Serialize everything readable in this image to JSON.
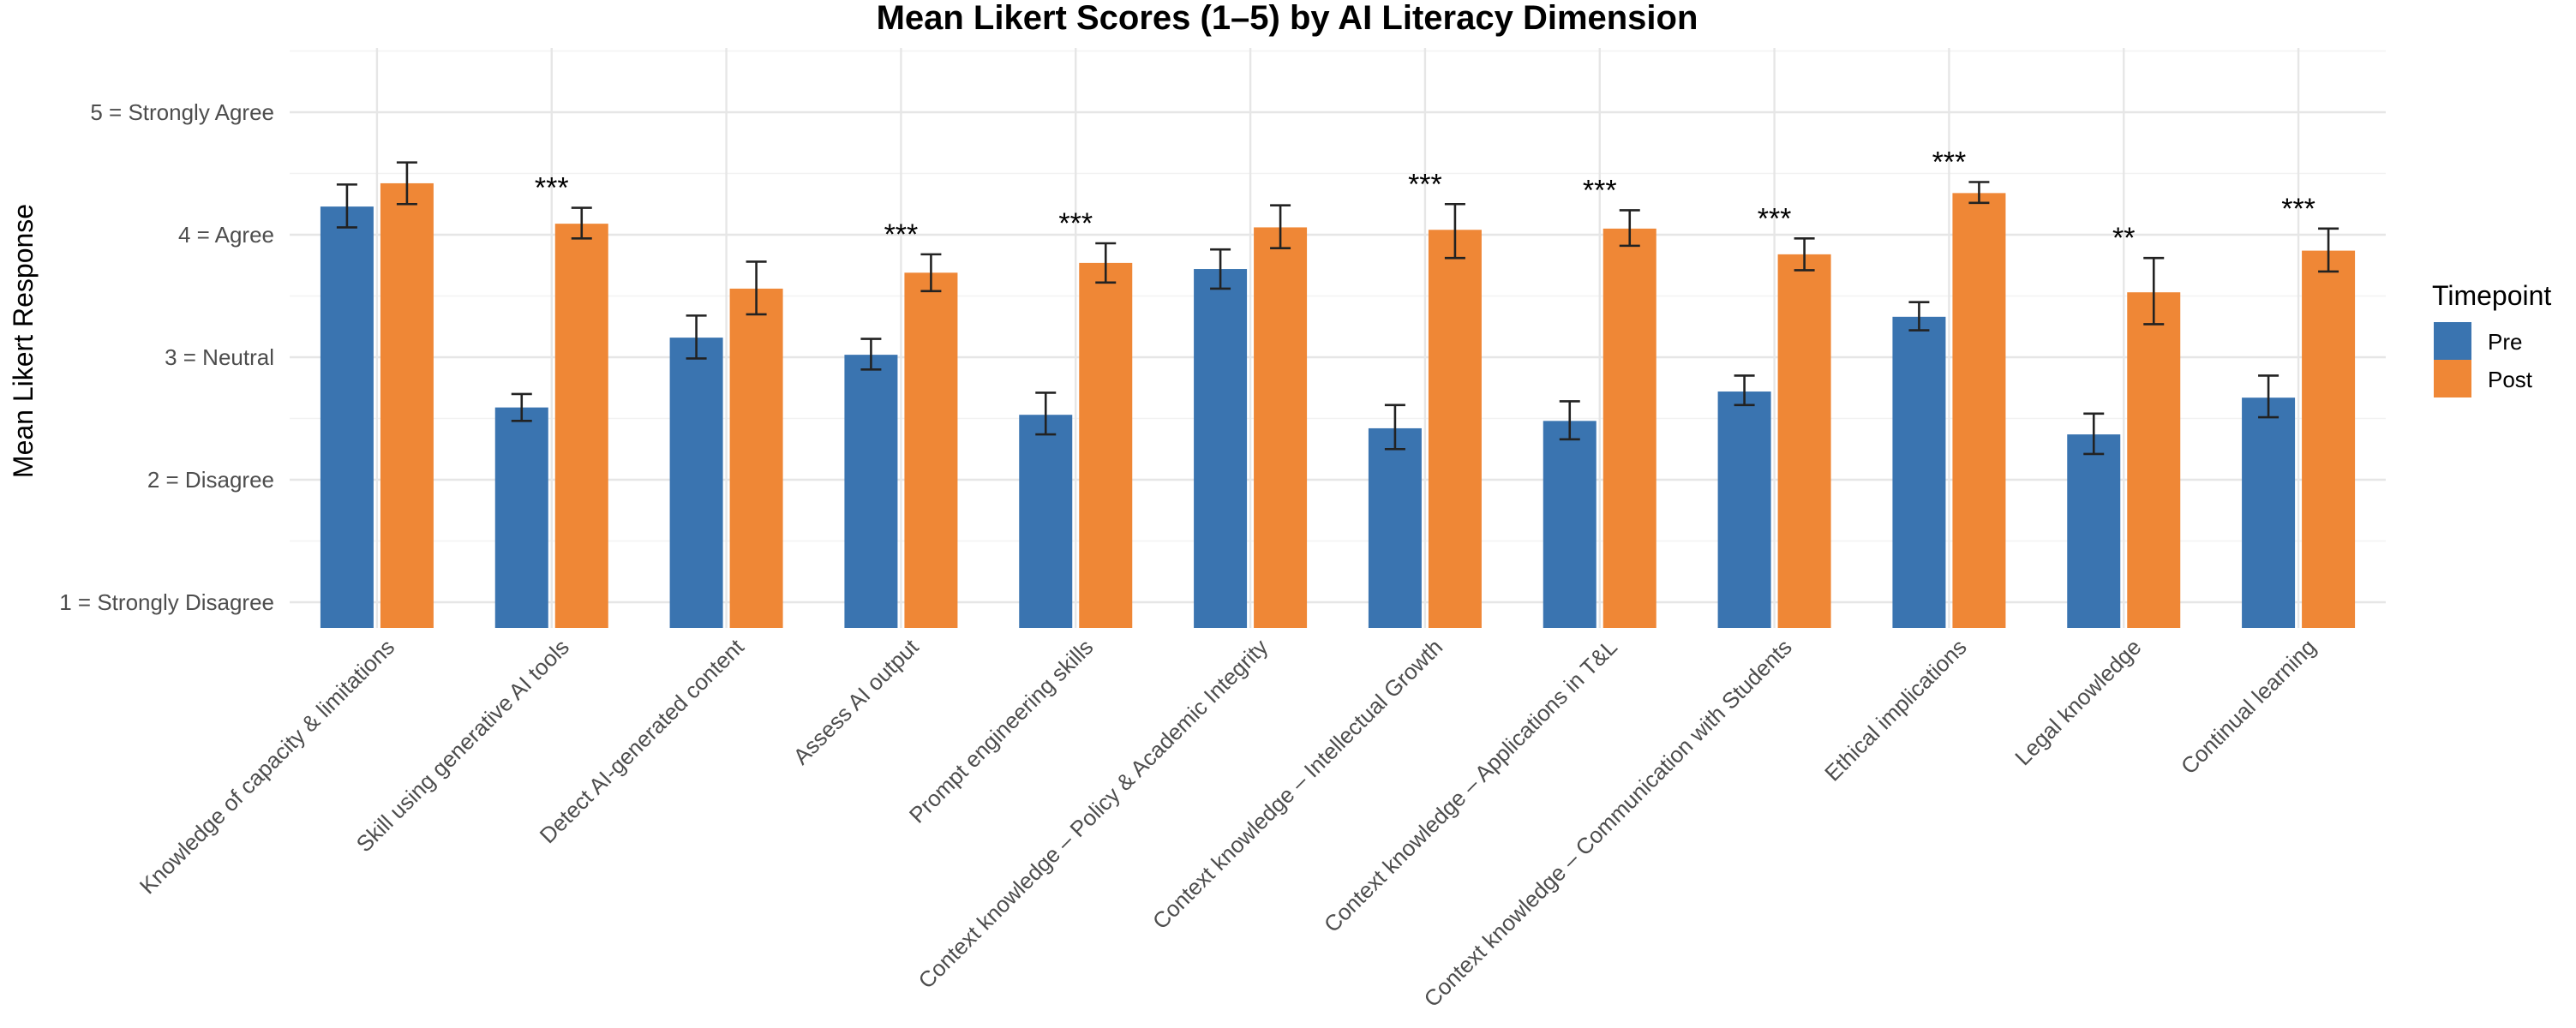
{
  "chart_data": {
    "type": "bar",
    "title": "Mean Likert Scores (1–5) by AI Literacy Dimension",
    "xlabel": "",
    "ylabel": "Mean Likert Response",
    "ylim": [
      0.8,
      5.5
    ],
    "yticks": [
      {
        "value": 1,
        "label": "1 = Strongly Disagree"
      },
      {
        "value": 2,
        "label": "2 = Disagree"
      },
      {
        "value": 3,
        "label": "3 = Neutral"
      },
      {
        "value": 4,
        "label": "4 = Agree"
      },
      {
        "value": 5,
        "label": "5 = Strongly Agree"
      }
    ],
    "grid": true,
    "legend": {
      "title": "Timepoint",
      "position": "right"
    },
    "categories": [
      "Knowledge of capacity & limitations",
      "Skill using generative AI tools",
      "Detect AI-generated content",
      "Assess AI output",
      "Prompt engineering skills",
      "Context knowledge – Policy & Academic Integrity",
      "Context knowledge – Intellectual Growth",
      "Context knowledge – Applications in T&L",
      "Context knowledge – Communication with Students",
      "Ethical implications",
      "Legal knowledge",
      "Continual learning"
    ],
    "series": [
      {
        "name": "Pre",
        "color": "#3a74b0",
        "values": [
          4.23,
          2.59,
          3.16,
          3.02,
          2.53,
          3.72,
          2.42,
          2.48,
          2.72,
          3.33,
          2.37,
          2.67
        ],
        "error_low": [
          4.06,
          2.48,
          2.99,
          2.9,
          2.37,
          3.56,
          2.25,
          2.33,
          2.61,
          3.22,
          2.21,
          2.51
        ],
        "error_high": [
          4.41,
          2.7,
          3.34,
          3.15,
          2.71,
          3.88,
          2.61,
          2.64,
          2.85,
          3.45,
          2.54,
          2.85
        ]
      },
      {
        "name": "Post",
        "color": "#ef8736",
        "values": [
          4.42,
          4.09,
          3.56,
          3.69,
          3.77,
          4.06,
          4.04,
          4.05,
          3.84,
          4.34,
          3.53,
          3.87
        ],
        "error_low": [
          4.25,
          3.97,
          3.35,
          3.54,
          3.61,
          3.89,
          3.81,
          3.91,
          3.71,
          4.26,
          3.27,
          3.7
        ],
        "error_high": [
          4.59,
          4.22,
          3.78,
          3.84,
          3.93,
          4.24,
          4.25,
          4.2,
          3.97,
          4.43,
          3.81,
          4.05
        ]
      }
    ],
    "significance": [
      "",
      "***",
      "",
      "***",
      "***",
      "",
      "***",
      "***",
      "***",
      "***",
      "**",
      "***"
    ]
  }
}
